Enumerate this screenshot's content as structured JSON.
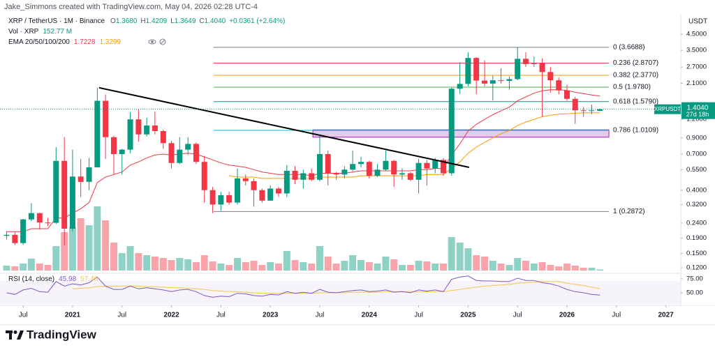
{
  "header": {
    "attribution": "Jake_Simmons created with TradingView.com, May 04, 2026 02:28 UTC-4",
    "symbol": "XRP / TetherUS · 1M · Binance",
    "ohlc": [
      {
        "key": "O",
        "value": "1.3680"
      },
      {
        "key": "H",
        "value": "1.4209"
      },
      {
        "key": "L",
        "value": "1.3649"
      },
      {
        "key": "C",
        "value": "1.4040"
      }
    ],
    "change": "+0.0361 (+2.64%)",
    "volume_label": "Vol · XRP",
    "volume_value": "152.77 M",
    "ema_label": "EMA 20/50/100/200",
    "ema_values": [
      "1.7228",
      "1.3299"
    ]
  },
  "chart_data": {
    "type": "candlestick",
    "currency": "USDT",
    "up_color": "#089981",
    "down_color": "#f23645",
    "log_scale": true,
    "xlim": [
      2020.266,
      2027.151
    ],
    "xticks": [
      {
        "value": 2020.5,
        "label": "Jul"
      },
      2021,
      {
        "value": 2021.5,
        "label": "Jul"
      },
      2022,
      {
        "value": 2022.5,
        "label": "Jul"
      },
      2023,
      {
        "value": 2023.5,
        "label": "Jul"
      },
      2024,
      {
        "value": 2024.5,
        "label": "Jul"
      },
      2025,
      {
        "value": 2025.5,
        "label": "Jul"
      },
      2026,
      {
        "value": 2026.5,
        "label": "Jul"
      },
      2027
    ],
    "ylim": [
      0.1125,
      4.96
    ],
    "yticks": [
      {
        "value": 4.5,
        "label": "4.5000"
      },
      {
        "value": 3.5,
        "label": "3.5000"
      },
      {
        "value": 2.7,
        "label": "2.7000"
      },
      {
        "value": 2.1,
        "label": "2.1000"
      },
      {
        "value": 1.5,
        "label": "1.5000"
      },
      {
        "value": 1.2,
        "label": "1.2000"
      },
      {
        "value": 0.9,
        "label": "0.9000"
      },
      {
        "value": 0.7,
        "label": "0.7000"
      },
      {
        "value": 0.55,
        "label": "0.5500"
      },
      {
        "value": 0.4,
        "label": "0.4000"
      },
      {
        "value": 0.32,
        "label": "0.3200"
      },
      {
        "value": 0.24,
        "label": "0.2400"
      },
      {
        "value": 0.19,
        "label": "0.1900"
      },
      {
        "value": 0.15,
        "label": "0.1500"
      },
      {
        "value": 0.12,
        "label": "0.1200"
      }
    ],
    "x": [
      2020.333,
      2020.417,
      2020.5,
      2020.583,
      2020.667,
      2020.75,
      2020.833,
      2020.917,
      2021,
      2021.083,
      2021.167,
      2021.25,
      2021.333,
      2021.417,
      2021.5,
      2021.583,
      2021.667,
      2021.75,
      2021.833,
      2021.917,
      2022,
      2022.083,
      2022.167,
      2022.25,
      2022.333,
      2022.417,
      2022.5,
      2022.583,
      2022.667,
      2022.75,
      2022.833,
      2022.917,
      2023,
      2023.083,
      2023.167,
      2023.25,
      2023.333,
      2023.417,
      2023.5,
      2023.583,
      2023.667,
      2023.75,
      2023.833,
      2023.917,
      2024,
      2024.083,
      2024.167,
      2024.25,
      2024.333,
      2024.417,
      2024.5,
      2024.583,
      2024.667,
      2024.75,
      2024.833,
      2024.917,
      2025,
      2025.083,
      2025.167,
      2025.25,
      2025.333,
      2025.417,
      2025.5,
      2025.583,
      2025.667,
      2025.75,
      2025.833,
      2025.917,
      2026,
      2026.083,
      2026.167,
      2026.25,
      2026.333
    ],
    "candles": [
      [
        0.197,
        0.211,
        0.186,
        0.2
      ],
      [
        0.2,
        0.209,
        0.171,
        0.176
      ],
      [
        0.176,
        0.256,
        0.171,
        0.254
      ],
      [
        0.254,
        0.327,
        0.247,
        0.28
      ],
      [
        0.28,
        0.282,
        0.218,
        0.242
      ],
      [
        0.242,
        0.26,
        0.229,
        0.241
      ],
      [
        0.241,
        0.78,
        0.236,
        0.63
      ],
      [
        0.63,
        0.91,
        0.17,
        0.22
      ],
      [
        0.22,
        0.75,
        0.211,
        0.494
      ],
      [
        0.494,
        0.65,
        0.36,
        0.455
      ],
      [
        0.455,
        0.66,
        0.4,
        0.57
      ],
      [
        0.57,
        1.96,
        0.57,
        1.6
      ],
      [
        1.6,
        1.76,
        0.65,
        0.91
      ],
      [
        0.91,
        0.93,
        0.51,
        0.7
      ],
      [
        0.7,
        0.76,
        0.51,
        0.75
      ],
      [
        0.75,
        1.34,
        0.71,
        1.2
      ],
      [
        1.2,
        1.41,
        0.85,
        0.95
      ],
      [
        0.95,
        1.23,
        0.92,
        1.09
      ],
      [
        1.09,
        1.35,
        0.95,
        1.0
      ],
      [
        1.0,
        1.02,
        0.76,
        0.83
      ],
      [
        0.83,
        0.86,
        0.56,
        0.61
      ],
      [
        0.61,
        0.91,
        0.6,
        0.75
      ],
      [
        0.75,
        0.91,
        0.69,
        0.82
      ],
      [
        0.82,
        0.84,
        0.6,
        0.62
      ],
      [
        0.62,
        0.68,
        0.33,
        0.4
      ],
      [
        0.4,
        0.42,
        0.28,
        0.32
      ],
      [
        0.32,
        0.39,
        0.29,
        0.37
      ],
      [
        0.37,
        0.39,
        0.32,
        0.33
      ],
      [
        0.33,
        0.56,
        0.32,
        0.48
      ],
      [
        0.48,
        0.51,
        0.43,
        0.46
      ],
      [
        0.46,
        0.48,
        0.31,
        0.4
      ],
      [
        0.4,
        0.41,
        0.33,
        0.34
      ],
      [
        0.34,
        0.43,
        0.34,
        0.41
      ],
      [
        0.41,
        0.42,
        0.36,
        0.38
      ],
      [
        0.38,
        0.59,
        0.36,
        0.54
      ],
      [
        0.54,
        0.58,
        0.44,
        0.47
      ],
      [
        0.47,
        0.55,
        0.41,
        0.52
      ],
      [
        0.52,
        0.56,
        0.46,
        0.47
      ],
      [
        0.47,
        0.93,
        0.46,
        0.7
      ],
      [
        0.7,
        0.74,
        0.43,
        0.52
      ],
      [
        0.52,
        0.53,
        0.47,
        0.51
      ],
      [
        0.51,
        0.58,
        0.48,
        0.55
      ],
      [
        0.55,
        0.74,
        0.54,
        0.6
      ],
      [
        0.6,
        0.67,
        0.57,
        0.62
      ],
      [
        0.62,
        0.63,
        0.48,
        0.5
      ],
      [
        0.5,
        0.6,
        0.49,
        0.55
      ],
      [
        0.55,
        0.74,
        0.54,
        0.63
      ],
      [
        0.63,
        0.64,
        0.42,
        0.51
      ],
      [
        0.51,
        0.56,
        0.47,
        0.52
      ],
      [
        0.52,
        0.53,
        0.46,
        0.47
      ],
      [
        0.47,
        0.65,
        0.38,
        0.61
      ],
      [
        0.61,
        0.64,
        0.43,
        0.56
      ],
      [
        0.56,
        0.66,
        0.52,
        0.64
      ],
      [
        0.64,
        0.66,
        0.5,
        0.52
      ],
      [
        0.52,
        1.97,
        0.5,
        1.93
      ],
      [
        1.93,
        2.91,
        1.78,
        2.08
      ],
      [
        2.08,
        3.4,
        2.0,
        3.11
      ],
      [
        3.11,
        3.15,
        1.77,
        2.19
      ],
      [
        2.19,
        3.0,
        2.0,
        2.09
      ],
      [
        2.09,
        2.36,
        1.61,
        2.2
      ],
      [
        2.2,
        2.65,
        2.08,
        2.18
      ],
      [
        2.18,
        2.34,
        1.9,
        2.24
      ],
      [
        2.24,
        3.66,
        2.2,
        3.07
      ],
      [
        3.07,
        3.4,
        2.7,
        2.83
      ],
      [
        2.83,
        3.18,
        2.7,
        2.86
      ],
      [
        2.86,
        3.1,
        1.25,
        2.5
      ],
      [
        2.5,
        2.7,
        1.82,
        2.2
      ],
      [
        2.2,
        2.3,
        1.77,
        1.88
      ],
      [
        1.88,
        2.05,
        1.6,
        1.65
      ],
      [
        1.65,
        1.7,
        1.12,
        1.38
      ],
      [
        1.38,
        1.45,
        1.25,
        1.37
      ],
      [
        1.37,
        1.51,
        1.3,
        1.38
      ],
      [
        1.368,
        1.4209,
        1.3649,
        1.404
      ]
    ],
    "volume": [
      700,
      600,
      1000,
      1700,
      1000,
      800,
      3500,
      5500,
      6200,
      7500,
      6500,
      9200,
      7200,
      4000,
      2500,
      3500,
      2500,
      2200,
      2000,
      1800,
      1500,
      1800,
      1600,
      1200,
      2200,
      1300,
      1000,
      800,
      1800,
      1200,
      1400,
      800,
      1200,
      1000,
      2800,
      1500,
      1200,
      1000,
      3500,
      2000,
      1000,
      1400,
      2200,
      1500,
      1200,
      1000,
      2000,
      1600,
      800,
      800,
      1400,
      1300,
      1000,
      1000,
      4800,
      4000,
      3200,
      2200,
      2000,
      1400,
      1000,
      800,
      1800,
      1400,
      1000,
      1200,
      800,
      600,
      1000,
      700,
      400,
      400,
      152.77
    ],
    "series": [
      {
        "color": "#f23645",
        "values": [
          0.21,
          0.21,
          0.21,
          0.22,
          0.22,
          0.22,
          0.26,
          0.26,
          0.28,
          0.3,
          0.33,
          0.45,
          0.49,
          0.51,
          0.53,
          0.59,
          0.62,
          0.66,
          0.69,
          0.7,
          0.69,
          0.7,
          0.71,
          0.7,
          0.67,
          0.64,
          0.61,
          0.59,
          0.58,
          0.57,
          0.55,
          0.53,
          0.52,
          0.51,
          0.51,
          0.51,
          0.51,
          0.5,
          0.52,
          0.52,
          0.52,
          0.52,
          0.53,
          0.54,
          0.54,
          0.54,
          0.54,
          0.54,
          0.54,
          0.54,
          0.55,
          0.55,
          0.56,
          0.56,
          0.69,
          0.82,
          1.0,
          1.11,
          1.2,
          1.29,
          1.37,
          1.45,
          1.6,
          1.7,
          1.8,
          1.87,
          1.9,
          1.9,
          1.88,
          1.83,
          1.79,
          1.75,
          1.7228
        ]
      },
      {
        "color": "#ff9800",
        "values": [
          null,
          null,
          null,
          null,
          null,
          null,
          null,
          null,
          null,
          null,
          null,
          null,
          null,
          null,
          null,
          null,
          null,
          null,
          null,
          null,
          null,
          null,
          null,
          null,
          null,
          null,
          null,
          0.5,
          0.49,
          0.49,
          0.49,
          0.48,
          0.48,
          0.48,
          0.48,
          0.48,
          0.48,
          0.48,
          0.49,
          0.49,
          0.49,
          0.49,
          0.49,
          0.5,
          0.5,
          0.5,
          0.5,
          0.5,
          0.5,
          0.5,
          0.5,
          0.51,
          0.51,
          0.51,
          0.56,
          0.62,
          0.71,
          0.78,
          0.84,
          0.9,
          0.96,
          1.01,
          1.09,
          1.15,
          1.2,
          1.25,
          1.28,
          1.3,
          1.31,
          1.32,
          1.33,
          1.33,
          1.3299
        ]
      }
    ],
    "fib": {
      "x": [
        2022.426,
        2026.424
      ],
      "prices": [
        3.6688,
        2.8707,
        2.377,
        1.978,
        1.579,
        1.0109,
        0.2872
      ],
      "labels": [
        "0 (3.6688)",
        "0.236 (2.8707)",
        "0.382 (2.3770)",
        "0.5 (1.9780)",
        "0.618 (1.5790)",
        "0.786 (1.0109)",
        "1 (0.2872)"
      ],
      "colors": [
        "#787b86",
        "#f23645",
        "#ff9800",
        "#4caf50",
        "#089981",
        "#00bcd4",
        "#787b86"
      ]
    },
    "zone": {
      "x": [
        2023.43,
        2026.424
      ],
      "y": [
        0.91,
        1.02
      ],
      "color": "#9c27b0"
    },
    "trendline": {
      "x": [
        2021.268,
        2025.01
      ],
      "y": [
        1.96,
        0.57
      ],
      "color": "#000000"
    },
    "last_price_tag": {
      "symbol": "XRPUSDT",
      "price": "1.4040",
      "countdown": "27d 18h"
    },
    "rsi": {
      "title": "RSI (14, close)",
      "color": "#7e57c2",
      "ma_color": "#f7c548",
      "ylim": [
        30,
        81
      ],
      "yticks": [
        {
          "value": 75,
          "label": "75.00"
        },
        {
          "value": 50,
          "label": "50.00"
        }
      ],
      "last_labels": [
        "45.98",
        "57.48"
      ],
      "values": [
        50,
        47,
        55,
        58,
        52,
        51,
        70,
        62,
        66,
        64,
        68,
        78,
        62,
        56,
        56,
        62,
        57,
        59,
        57,
        55,
        52,
        55,
        56,
        52,
        45,
        42,
        44,
        43,
        49,
        48,
        45,
        44,
        47,
        46,
        52,
        49,
        51,
        49,
        56,
        51,
        50,
        52,
        54,
        55,
        52,
        53,
        55,
        51,
        52,
        50,
        55,
        53,
        55,
        52,
        74,
        78,
        80,
        72,
        71,
        71,
        70,
        70,
        76,
        72,
        72,
        68,
        66,
        62,
        56,
        52,
        50,
        47,
        45.98
      ],
      "ma": [
        null,
        null,
        null,
        null,
        null,
        null,
        null,
        null,
        57,
        58,
        59,
        61,
        62,
        62,
        62,
        62,
        62,
        61,
        61,
        60,
        59,
        59,
        58,
        57,
        56,
        54,
        53,
        52,
        52,
        51,
        50,
        49,
        49,
        49,
        49,
        49,
        49,
        49,
        50,
        50,
        50,
        50,
        51,
        51,
        51,
        51,
        52,
        52,
        52,
        52,
        52,
        52,
        52,
        52,
        54,
        56,
        58,
        60,
        62,
        63,
        64,
        65,
        67,
        68,
        69,
        70,
        70,
        70,
        67,
        65,
        63,
        60,
        57.48
      ]
    }
  },
  "footer": {
    "logo": "TradingView"
  }
}
